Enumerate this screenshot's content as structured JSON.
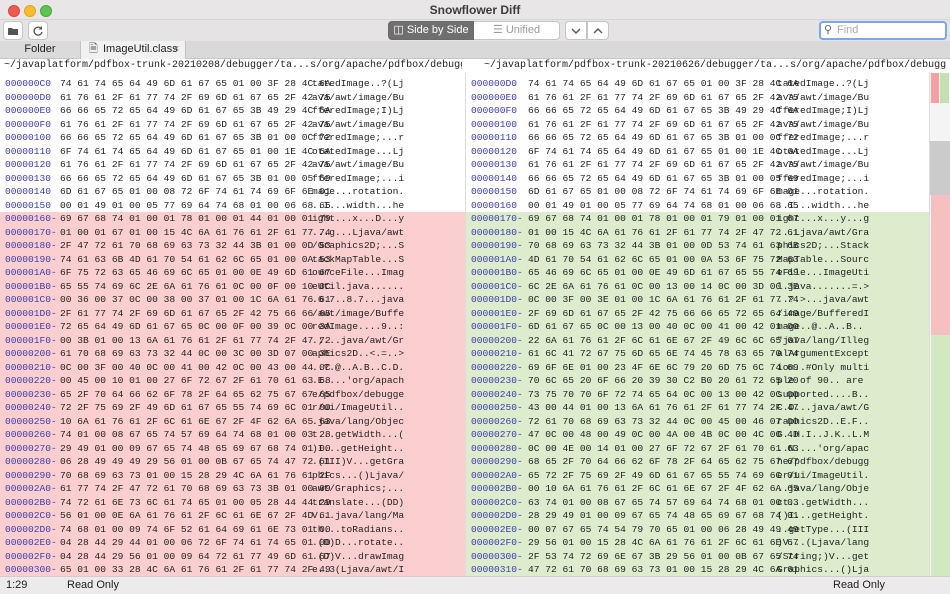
{
  "window": {
    "title": "Snowflower Diff"
  },
  "toolbar": {
    "side_by_side": "Side by Side",
    "unified": "Unified",
    "find_placeholder": "Find"
  },
  "tabs": {
    "folder": "Folder",
    "file": "ImageUtil.class"
  },
  "paths": {
    "left": "~/javaplatform/pdfbox-trunk-20210208/debugger/ta...s/org/apache/pdfbox/debugger/ui/ImageUtil.class",
    "right": "~/javaplatform/pdfbox-trunk-20210626/debugger/ta...s/org/apache/pdfbox/debugger/ui/ImageUtil.class"
  },
  "left_rows": [
    {
      "off": "000000C0",
      "hex": "74 61 74 65 64 49 6D 61 67 65 01 00 3F 28 4C 6A",
      "asc": "tatedImage..?(Lj",
      "k": "n"
    },
    {
      "off": "000000D0",
      "hex": "61 76 61 2F 61 77 74 2F 69 6D 61 67 65 2F 42 75",
      "asc": "ava/awt/image/Bu",
      "k": "n"
    },
    {
      "off": "000000E0",
      "hex": "66 66 65 72 65 64 49 6D 61 67 65 3B 49 29 4C 6A",
      "asc": "fferedImage;I)Lj",
      "k": "n"
    },
    {
      "off": "000000F0",
      "hex": "61 76 61 2F 61 77 74 2F 69 6D 61 67 65 2F 42 75",
      "asc": "ava/awt/image/Bu",
      "k": "n"
    },
    {
      "off": "00000100",
      "hex": "66 66 65 72 65 64 49 6D 61 67 65 3B 01 00 0C 72",
      "asc": "fferedImage;...r",
      "k": "n"
    },
    {
      "off": "00000110",
      "hex": "6F 74 61 74 65 64 49 6D 61 67 65 01 00 1E 4C 6A",
      "asc": "otatedImage...Lj",
      "k": "n"
    },
    {
      "off": "00000120",
      "hex": "61 76 61 2F 61 77 74 2F 69 6D 61 67 65 2F 42 75",
      "asc": "ava/awt/image/Bu",
      "k": "n"
    },
    {
      "off": "00000130",
      "hex": "66 66 65 72 65 64 49 6D 61 67 65 3B 01 00 05 69",
      "asc": "fferedImage;...i",
      "k": "n"
    },
    {
      "off": "00000140",
      "hex": "6D 61 67 65 01 00 08 72 6F 74 61 74 69 6F 6E 01",
      "asc": "mage...rotation.",
      "k": "n"
    },
    {
      "off": "00000150",
      "hex": "00 01 49 01 00 05 77 69 64 74 68 01 00 06 68 65",
      "asc": "..I...width...he",
      "k": "n"
    },
    {
      "off": "00000160",
      "hex": "69 67 68 74 01 00 01 78 01 00 01 44 01 00 01 79",
      "asc": "ight...x...D...y",
      "k": "d"
    },
    {
      "off": "00000170",
      "hex": "01 00 01 67 01 00 15 4C 6A 61 76 61 2F 61 77 74",
      "asc": "...g...Ljava/awt",
      "k": "d"
    },
    {
      "off": "00000180",
      "hex": "2F 47 72 61 70 68 69 63 73 32 44 3B 01 00 0D 53",
      "asc": "/Graphics2D;...S",
      "k": "d"
    },
    {
      "off": "00000190",
      "hex": "74 61 63 6B 4D 61 70 54 61 62 6C 65 01 00 0A 53",
      "asc": "tackMapTable...S",
      "k": "d"
    },
    {
      "off": "000001A0",
      "hex": "6F 75 72 63 65 46 69 6C 65 01 00 0E 49 6D 61 67",
      "asc": "ourceFile...Imag",
      "k": "d"
    },
    {
      "off": "000001B0",
      "hex": "65 55 74 69 6C 2E 6A 61 76 61 0C 00 0F 00 10 0C",
      "asc": "eUtil.java......",
      "k": "d"
    },
    {
      "off": "000001C0",
      "hex": "00 36 00 37 0C 00 38 00 37 01 00 1C 6A 61 76 61",
      "asc": ".6.7..8.7...java",
      "k": "d"
    },
    {
      "off": "000001D0",
      "hex": "2F 61 77 74 2F 69 6D 61 67 65 2F 42 75 66 66 65",
      "asc": "/awt/image/Buffe",
      "k": "d"
    },
    {
      "off": "000001E0",
      "hex": "72 65 64 49 6D 61 67 65 0C 00 0F 00 39 0C 00 3A",
      "asc": "redImage....9..:",
      "k": "d"
    },
    {
      "off": "000001F0",
      "hex": "00 3B 01 00 13 6A 61 76 61 2F 61 77 74 2F 47 72",
      "asc": ".;...java/awt/Gr",
      "k": "d"
    },
    {
      "off": "00000200",
      "hex": "61 70 68 69 63 73 32 44 0C 00 3C 00 3D 07 00 3E",
      "asc": "aphics2D..<.=..>",
      "k": "d"
    },
    {
      "off": "00000210",
      "hex": "0C 00 3F 00 40 0C 00 41 00 42 0C 00 43 00 44 0C",
      "asc": "..?.@..A.B..C.D.",
      "k": "d"
    },
    {
      "off": "00000220",
      "hex": "00 45 00 10 01 00 27 6F 72 67 2F 61 70 61 63 68",
      "asc": ".E....'org/apach",
      "k": "d"
    },
    {
      "off": "00000230",
      "hex": "65 2F 70 64 66 62 6F 78 2F 64 65 62 75 67 67 65",
      "asc": "e/pdfbox/debugge",
      "k": "d"
    },
    {
      "off": "00000240",
      "hex": "72 2F 75 69 2F 49 6D 61 67 65 55 74 69 6C 01 00",
      "asc": "r/ui/ImageUtil..",
      "k": "d"
    },
    {
      "off": "00000250",
      "hex": "10 6A 61 76 61 2F 6C 61 6E 67 2F 4F 62 6A 65 63",
      "asc": ".java/lang/Objec",
      "k": "d"
    },
    {
      "off": "00000260",
      "hex": "74 01 00 08 67 65 74 57 69 64 74 68 01 00 03 28",
      "asc": "t...getWidth...(",
      "k": "d"
    },
    {
      "off": "00000270",
      "hex": "29 49 01 00 09 67 65 74 48 65 69 67 68 74 01 00",
      "asc": ")I...getHeight..",
      "k": "d"
    },
    {
      "off": "00000280",
      "hex": "06 28 49 49 49 29 56 01 00 0B 67 65 74 47 72 61",
      "asc": ".(III)V...getGra",
      "k": "d"
    },
    {
      "off": "00000290",
      "hex": "70 68 69 63 73 01 00 15 28 29 4C 6A 61 76 61 2F",
      "asc": "phics...()Ljava/",
      "k": "d"
    },
    {
      "off": "000002A0",
      "hex": "61 77 74 2F 47 72 61 70 68 69 63 73 3B 01 00 09",
      "asc": "awt/Graphics;...",
      "k": "d"
    },
    {
      "off": "000002B0",
      "hex": "74 72 61 6E 73 6C 61 74 65 01 00 05 28 44 44 29",
      "asc": "translate...(DD)",
      "k": "d"
    },
    {
      "off": "000002C0",
      "hex": "56 01 00 0E 6A 61 76 61 2F 6C 61 6E 67 2F 4D 61",
      "asc": "V...java/lang/Ma",
      "k": "d"
    },
    {
      "off": "000002D0",
      "hex": "74 68 01 00 09 74 6F 52 61 64 69 61 6E 73 01 00",
      "asc": "th...toRadians..",
      "k": "d"
    },
    {
      "off": "000002E0",
      "hex": "04 28 44 29 44 01 00 06 72 6F 74 61 74 65 01 00",
      "asc": ".(D)D...rotate..",
      "k": "d"
    },
    {
      "off": "000002F0",
      "hex": "04 28 44 29 56 01 00 09 64 72 61 77 49 6D 61 67",
      "asc": ".(D)V...drawImag",
      "k": "d"
    },
    {
      "off": "00000300",
      "hex": "65 01 00 33 28 4C 6A 61 76 61 2F 61 77 74 2F 49",
      "asc": "e..3(Ljava/awt/I",
      "k": "d"
    }
  ],
  "right_rows": [
    {
      "off": "000000D0",
      "hex": "74 61 74 65 64 49 6D 61 67 65 01 00 3F 28 4C 6A",
      "asc": "tatedImage..?(Lj",
      "k": "n"
    },
    {
      "off": "000000E0",
      "hex": "61 76 61 2F 61 77 74 2F 69 6D 61 67 65 2F 42 75",
      "asc": "ava/awt/image/Bu",
      "k": "n"
    },
    {
      "off": "000000F0",
      "hex": "66 66 65 72 65 64 49 6D 61 67 65 3B 49 29 4C 6A",
      "asc": "fferedImage;I)Lj",
      "k": "n"
    },
    {
      "off": "00000100",
      "hex": "61 76 61 2F 61 77 74 2F 69 6D 61 67 65 2F 42 75",
      "asc": "ava/awt/image/Bu",
      "k": "n"
    },
    {
      "off": "00000110",
      "hex": "66 66 65 72 65 64 49 6D 61 67 65 3B 01 00 0C 72",
      "asc": "fferedImage;...r",
      "k": "n"
    },
    {
      "off": "00000120",
      "hex": "6F 74 61 74 65 64 49 6D 61 67 65 01 00 1E 4C 6A",
      "asc": "otatedImage...Lj",
      "k": "n"
    },
    {
      "off": "00000130",
      "hex": "61 76 61 2F 61 77 74 2F 69 6D 61 67 65 2F 42 75",
      "asc": "ava/awt/image/Bu",
      "k": "n"
    },
    {
      "off": "00000140",
      "hex": "66 66 65 72 65 64 49 6D 61 67 65 3B 01 00 05 69",
      "asc": "fferedImage;...i",
      "k": "n"
    },
    {
      "off": "00000150",
      "hex": "6D 61 67 65 01 00 08 72 6F 74 61 74 69 6F 6E 01",
      "asc": "mage...rotation.",
      "k": "n"
    },
    {
      "off": "00000160",
      "hex": "00 01 49 01 00 05 77 69 64 74 68 01 00 06 68 65",
      "asc": "..I...width...he",
      "k": "n"
    },
    {
      "off": "00000170",
      "hex": "69 67 68 74 01 00 01 78 01 00 01 79 01 00 01 67",
      "asc": "ight...x...y...g",
      "k": "a"
    },
    {
      "off": "00000180",
      "hex": "01 00 15 4C 6A 61 76 61 2F 61 77 74 2F 47 72 61",
      "asc": "...Ljava/awt/Gra",
      "k": "a"
    },
    {
      "off": "00000190",
      "hex": "70 68 69 63 73 32 44 3B 01 00 0D 53 74 61 63 6B",
      "asc": "phics2D;...Stack",
      "k": "a"
    },
    {
      "off": "000001A0",
      "hex": "4D 61 70 54 61 62 6C 65 01 00 0A 53 6F 75 72 63",
      "asc": "MapTable...Sourc",
      "k": "a"
    },
    {
      "off": "000001B0",
      "hex": "65 46 69 6C 65 01 00 0E 49 6D 61 67 65 55 74 69",
      "asc": "eFile...ImageUti",
      "k": "a"
    },
    {
      "off": "000001C0",
      "hex": "6C 2E 6A 61 76 61 0C 00 13 00 14 0C 00 3D 00 3E",
      "asc": "l.java.......=.>",
      "k": "a"
    },
    {
      "off": "000001D0",
      "hex": "0C 00 3F 00 3E 01 00 1C 6A 61 76 61 2F 61 77 74",
      "asc": "..?.>...java/awt",
      "k": "a"
    },
    {
      "off": "000001E0",
      "hex": "2F 69 6D 61 67 65 2F 42 75 66 66 65 72 65 64 49",
      "asc": "/image/BufferedI",
      "k": "a"
    },
    {
      "off": "000001F0",
      "hex": "6D 61 67 65 0C 00 13 00 40 0C 00 41 00 42 01 00",
      "asc": "mage..@..A..B..",
      "k": "a"
    },
    {
      "off": "00000200",
      "hex": "22 6A 61 76 61 2F 6C 61 6E 67 2F 49 6C 6C 65 67",
      "asc": "\"java/lang/Illeg",
      "k": "a"
    },
    {
      "off": "00000210",
      "hex": "61 6C 41 72 67 75 6D 65 6E 74 45 78 63 65 70 74",
      "asc": "alArgumentExcept",
      "k": "a"
    },
    {
      "off": "00000220",
      "hex": "69 6F 6E 01 00 23 4F 6E 6C 79 20 6D 75 6C 74 69",
      "asc": "ion..#Only multi",
      "k": "a"
    },
    {
      "off": "00000230",
      "hex": "70 6C 65 20 6F 66 20 39 30 C2 B0 20 61 72 65 20",
      "asc": "ple of 90.. are ",
      "k": "a"
    },
    {
      "off": "00000240",
      "hex": "73 75 70 70 6F 72 74 65 64 0C 00 13 00 42 0C 00",
      "asc": "supported....B..",
      "k": "a"
    },
    {
      "off": "00000250",
      "hex": "43 00 44 01 00 13 6A 61 76 61 2F 61 77 74 2F 47",
      "asc": "C.D...java/awt/G",
      "k": "a"
    },
    {
      "off": "00000260",
      "hex": "72 61 70 68 69 63 73 32 44 0C 00 45 00 46 07 00",
      "asc": "raphics2D..E.F..",
      "k": "a"
    },
    {
      "off": "00000270",
      "hex": "47 0C 00 48 00 49 0C 00 4A 00 4B 0C 00 4C 00 4D",
      "asc": "G..H.I..J.K..L.M",
      "k": "a"
    },
    {
      "off": "00000280",
      "hex": "0C 00 4E 00 14 01 00 27 6F 72 67 2F 61 70 61 63",
      "asc": "..N....'org/apac",
      "k": "a"
    },
    {
      "off": "00000290",
      "hex": "68 65 2F 70 64 66 62 6F 78 2F 64 65 62 75 67 67",
      "asc": "he/pdfbox/debugg",
      "k": "a"
    },
    {
      "off": "000002A0",
      "hex": "65 72 2F 75 69 2F 49 6D 61 67 65 55 74 69 6C 01",
      "asc": "er/ui/ImageUtil.",
      "k": "a"
    },
    {
      "off": "000002B0",
      "hex": "00 10 6A 61 76 61 2F 6C 61 6E 67 2F 4F 62 6A 65",
      "asc": "..java/lang/Obje",
      "k": "a"
    },
    {
      "off": "000002C0",
      "hex": "63 74 01 00 08 67 65 74 57 69 64 74 68 01 00 03",
      "asc": "ct...getWidth...",
      "k": "a"
    },
    {
      "off": "000002D0",
      "hex": "28 29 49 01 00 09 67 65 74 48 65 69 67 68 74 01",
      "asc": "()I...getHeight.",
      "k": "a"
    },
    {
      "off": "000002E0",
      "hex": "00 07 67 65 74 54 79 70 65 01 00 06 28 49 49 49",
      "asc": "..getType...(III",
      "k": "a"
    },
    {
      "off": "000002F0",
      "hex": "29 56 01 00 15 28 4C 6A 61 76 61 2F 6C 61 6E 67",
      "asc": ")V...(Ljava/lang",
      "k": "a"
    },
    {
      "off": "00000300",
      "hex": "2F 53 74 72 69 6E 67 3B 29 56 01 00 0B 67 65 74",
      "asc": "/String;)V...get",
      "k": "a"
    },
    {
      "off": "00000310",
      "hex": "47 72 61 70 68 69 63 73 01 00 15 28 29 4C 6A 61",
      "asc": "Graphics...()Lja",
      "k": "a"
    }
  ],
  "status": {
    "cursor": "1:29",
    "left_mode": "Read Only",
    "right_mode": "Read Only"
  },
  "colors": {
    "deleted": "#fbcfcf",
    "added": "#dceccd",
    "offset": "#3d3db0"
  }
}
